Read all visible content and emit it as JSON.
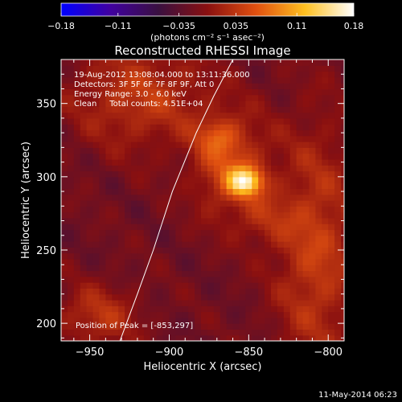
{
  "chart_data": {
    "type": "heatmap",
    "title": "Reconstructed RHESSI Image",
    "xlabel": "Heliocentric X (arcsec)",
    "ylabel": "Heliocentric Y (arcsec)",
    "xlim": [
      -968,
      -790
    ],
    "ylim": [
      188,
      380
    ],
    "x_ticks": [
      -950,
      -900,
      -850,
      -800
    ],
    "x_tick_labels": [
      "−950",
      "−900",
      "−850",
      "−800"
    ],
    "y_ticks": [
      200,
      250,
      300,
      350
    ],
    "y_tick_labels": [
      "200",
      "250",
      "300",
      "350"
    ],
    "colorbar": {
      "min": -0.18,
      "max": 0.18,
      "ticks": [
        -0.18,
        -0.11,
        -0.035,
        0.035,
        0.11,
        0.18
      ],
      "tick_labels": [
        "−0.18",
        "−0.11",
        "−0.035",
        "0.035",
        "0.11",
        "0.18"
      ],
      "unit_label": "(photons cm⁻² s⁻¹ asec⁻²)"
    },
    "annotations": [
      "19-Aug-2012 13:08:04.000 to 13:11:36.000",
      "Detectors: 3F 5F 6F 7F 8F 9F, Att 0",
      "Energy Range: 3.0 - 6.0 keV",
      "Clean     Total counts: 4.51E+04",
      "Position of Peak = [-853,297]"
    ],
    "peak_position": [
      -853,
      297
    ],
    "peak_value": 0.18,
    "sources": [
      {
        "x": -852,
        "y": 297,
        "sigma_x": 7.5,
        "sigma_y": 6.5,
        "amp": 0.135
      },
      {
        "x": -862,
        "y": 307,
        "sigma_x": 16,
        "sigma_y": 24,
        "amp": 0.07
      },
      {
        "x": -870,
        "y": 328,
        "sigma_x": 9,
        "sigma_y": 8,
        "amp": 0.04
      },
      {
        "x": -840,
        "y": 270,
        "sigma_x": 12,
        "sigma_y": 12,
        "amp": 0.03
      },
      {
        "x": -918,
        "y": 355,
        "sigma_x": 30,
        "sigma_y": 25,
        "amp": 0.055
      },
      {
        "x": -808,
        "y": 250,
        "sigma_x": 18,
        "sigma_y": 60,
        "amp": 0.06
      },
      {
        "x": -945,
        "y": 205,
        "sigma_x": 18,
        "sigma_y": 15,
        "amp": 0.05
      }
    ],
    "limb_curve": [
      [
        -931,
        188
      ],
      [
        -920,
        220
      ],
      [
        -910,
        250
      ],
      [
        -898,
        290
      ],
      [
        -883,
        330
      ],
      [
        -872,
        355
      ],
      [
        -860,
        380
      ]
    ],
    "limb_color": "#ffffff",
    "colormap": [
      "#0000ff",
      "#4000a0",
      "#3a1040",
      "#8a1010",
      "#e05010",
      "#ffc020",
      "#ffffff"
    ]
  },
  "footer": {
    "timestamp": "11-May-2014 06:23"
  }
}
